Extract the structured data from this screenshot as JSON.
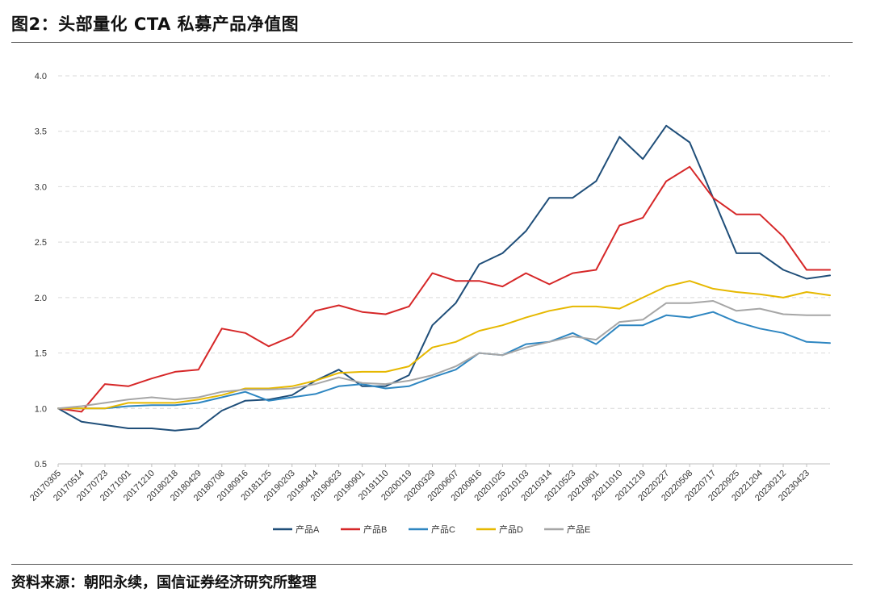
{
  "figure": {
    "title": "图2：头部量化 CTA 私募产品净值图",
    "source": "资料来源：朝阳永续，国信证券经济研究所整理"
  },
  "chart_data": {
    "type": "line",
    "title": "",
    "xlabel": "",
    "ylabel": "",
    "ylim": [
      0.5,
      4.0
    ],
    "yticks": [
      "0.5",
      "1.0",
      "1.5",
      "2.0",
      "2.5",
      "3.0",
      "3.5",
      "4.0"
    ],
    "x_tick_labels": [
      "20170305",
      "20170514",
      "20170723",
      "20171001",
      "20171210",
      "20180218",
      "20180429",
      "20180708",
      "20180916",
      "20181125",
      "20190203",
      "20190414",
      "20190623",
      "20190901",
      "20191110",
      "20200119",
      "20200329",
      "20200607",
      "20200816",
      "20201025",
      "20210103",
      "20210314",
      "20210523",
      "20210801",
      "20211010",
      "20211219",
      "20220227",
      "20220508",
      "20220717",
      "20220925",
      "20221204",
      "20230212",
      "20230423"
    ],
    "x": [
      "20170305",
      "20170514",
      "20170723",
      "20171001",
      "20171210",
      "20180218",
      "20180429",
      "20180708",
      "20180916",
      "20181125",
      "20190203",
      "20190414",
      "20190623",
      "20190901",
      "20191110",
      "20200119",
      "20200329",
      "20200607",
      "20200816",
      "20201025",
      "20210103",
      "20210314",
      "20210523",
      "20210801",
      "20211010",
      "20211219",
      "20220227",
      "20220508",
      "20220717",
      "20220925",
      "20221204",
      "20230212",
      "20230423",
      "20230531"
    ],
    "grid": true,
    "legend_position": "bottom",
    "series": [
      {
        "name": "产品A",
        "color": "#1f4e79",
        "values": [
          1.0,
          0.88,
          0.85,
          0.82,
          0.82,
          0.8,
          0.82,
          0.98,
          1.07,
          1.08,
          1.12,
          1.25,
          1.35,
          1.2,
          1.2,
          1.3,
          1.75,
          1.95,
          2.3,
          2.4,
          2.6,
          2.9,
          2.9,
          3.05,
          3.45,
          3.25,
          3.55,
          3.4,
          2.9,
          2.4,
          2.4,
          2.25,
          2.17,
          2.2
        ]
      },
      {
        "name": "产品B",
        "color": "#d62728",
        "values": [
          1.0,
          0.97,
          1.22,
          1.2,
          1.27,
          1.33,
          1.35,
          1.72,
          1.68,
          1.56,
          1.65,
          1.88,
          1.93,
          1.87,
          1.85,
          1.92,
          2.22,
          2.15,
          2.15,
          2.1,
          2.22,
          2.12,
          2.22,
          2.25,
          2.65,
          2.72,
          3.05,
          3.18,
          2.9,
          2.75,
          2.75,
          2.55,
          2.25,
          2.25
        ]
      },
      {
        "name": "产品C",
        "color": "#2e86c1",
        "values": [
          1.0,
          1.0,
          1.0,
          1.02,
          1.03,
          1.03,
          1.05,
          1.1,
          1.15,
          1.07,
          1.1,
          1.13,
          1.2,
          1.22,
          1.18,
          1.2,
          1.28,
          1.35,
          1.5,
          1.48,
          1.58,
          1.6,
          1.68,
          1.58,
          1.75,
          1.75,
          1.84,
          1.82,
          1.87,
          1.78,
          1.72,
          1.68,
          1.6,
          1.59
        ]
      },
      {
        "name": "产品D",
        "color": "#e6b800",
        "values": [
          1.0,
          1.0,
          1.0,
          1.05,
          1.05,
          1.05,
          1.08,
          1.12,
          1.18,
          1.18,
          1.2,
          1.25,
          1.32,
          1.33,
          1.33,
          1.38,
          1.55,
          1.6,
          1.7,
          1.75,
          1.82,
          1.88,
          1.92,
          1.92,
          1.9,
          2.0,
          2.1,
          2.15,
          2.08,
          2.05,
          2.03,
          2.0,
          2.05,
          2.02
        ]
      },
      {
        "name": "产品E",
        "color": "#a6a6a6",
        "values": [
          1.0,
          1.02,
          1.05,
          1.08,
          1.1,
          1.08,
          1.1,
          1.15,
          1.17,
          1.17,
          1.18,
          1.22,
          1.28,
          1.23,
          1.22,
          1.25,
          1.3,
          1.38,
          1.5,
          1.48,
          1.55,
          1.6,
          1.65,
          1.62,
          1.78,
          1.8,
          1.95,
          1.95,
          1.97,
          1.88,
          1.9,
          1.85,
          1.84,
          1.84
        ]
      }
    ]
  }
}
